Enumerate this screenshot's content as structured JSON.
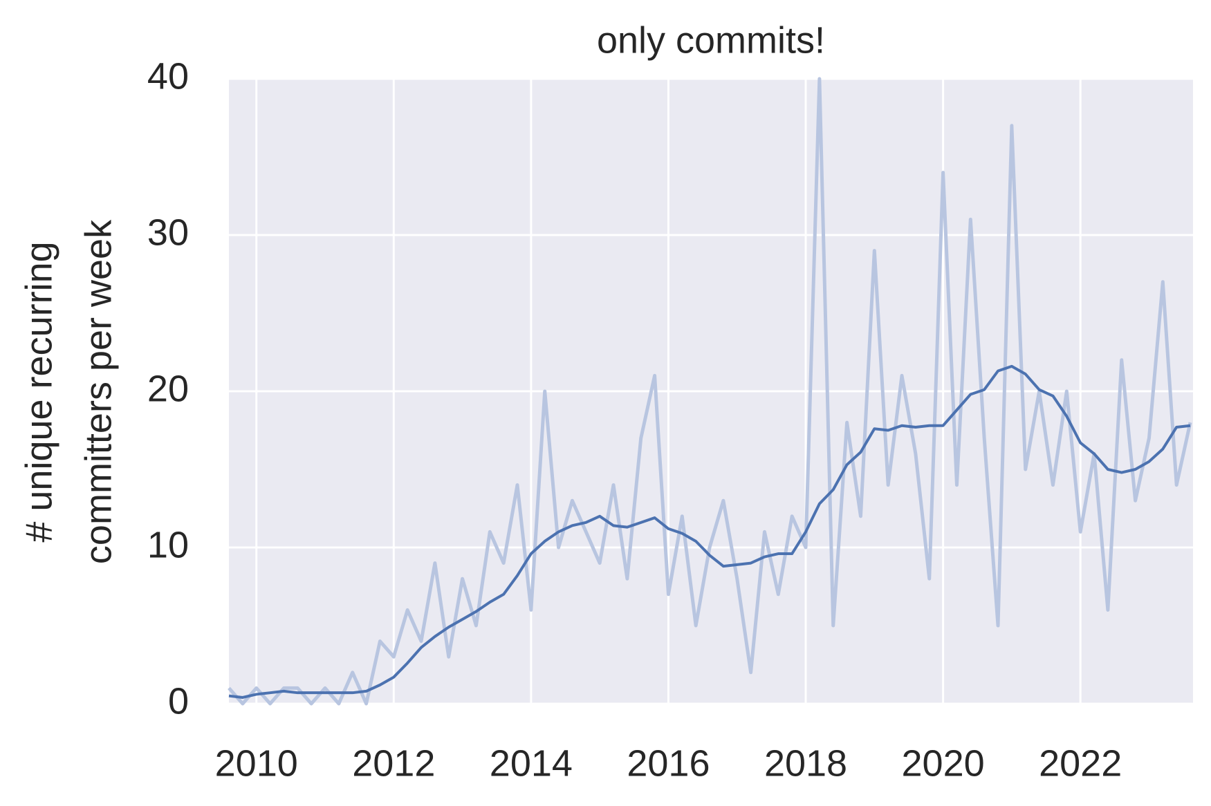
{
  "chart_data": {
    "type": "line",
    "title": "only commits!",
    "ylabel": [
      "# unique recurring",
      "committers per week"
    ],
    "x": [
      2009.6,
      2009.8,
      2010.0,
      2010.2,
      2010.4,
      2010.6,
      2010.8,
      2011.0,
      2011.2,
      2011.4,
      2011.6,
      2011.8,
      2012.0,
      2012.2,
      2012.4,
      2012.6,
      2012.8,
      2013.0,
      2013.2,
      2013.4,
      2013.6,
      2013.8,
      2014.0,
      2014.2,
      2014.4,
      2014.6,
      2014.8,
      2015.0,
      2015.2,
      2015.4,
      2015.6,
      2015.8,
      2016.0,
      2016.2,
      2016.4,
      2016.6,
      2016.8,
      2017.0,
      2017.2,
      2017.4,
      2017.6,
      2017.8,
      2018.0,
      2018.2,
      2018.4,
      2018.6,
      2018.8,
      2019.0,
      2019.2,
      2019.4,
      2019.6,
      2019.8,
      2020.0,
      2020.2,
      2020.4,
      2020.6,
      2020.8,
      2021.0,
      2021.2,
      2021.4,
      2021.6,
      2021.8,
      2022.0,
      2022.2,
      2022.4,
      2022.6,
      2022.8,
      2023.0,
      2023.2,
      2023.4,
      2023.6
    ],
    "series": [
      {
        "color": "#b8c5e0",
        "width": 5,
        "values": [
          1,
          0,
          1,
          0,
          1,
          1,
          0,
          1,
          0,
          2,
          0,
          4,
          3,
          6,
          4,
          9,
          3,
          8,
          5,
          11,
          9,
          14,
          6,
          20,
          10,
          13,
          11,
          9,
          14,
          8,
          17,
          21,
          7,
          12,
          5,
          10,
          13,
          8,
          2,
          11,
          7,
          12,
          10,
          40,
          5,
          18,
          12,
          29,
          14,
          21,
          16,
          8,
          34,
          14,
          31,
          17,
          5,
          37,
          15,
          20,
          14,
          20,
          11,
          16,
          6,
          22,
          13,
          17,
          27,
          14,
          18
        ]
      },
      {
        "color": "#4c72b0",
        "width": 4,
        "values": [
          0.5,
          0.4,
          0.6,
          0.7,
          0.8,
          0.7,
          0.7,
          0.7,
          0.7,
          0.7,
          0.8,
          1.2,
          1.7,
          2.6,
          3.6,
          4.3,
          4.9,
          5.4,
          5.9,
          6.5,
          7.0,
          8.2,
          9.6,
          10.4,
          11.0,
          11.4,
          11.6,
          12.0,
          11.4,
          11.3,
          11.6,
          11.9,
          11.2,
          10.9,
          10.4,
          9.5,
          8.8,
          8.9,
          9.0,
          9.4,
          9.6,
          9.6,
          11.0,
          12.8,
          13.7,
          15.3,
          16.1,
          17.6,
          17.5,
          17.8,
          17.7,
          17.8,
          17.8,
          18.8,
          19.8,
          20.1,
          21.3,
          21.6,
          21.1,
          20.1,
          19.7,
          18.4,
          16.7,
          16.0,
          15.0,
          14.8,
          15.0,
          15.5,
          16.3,
          17.7,
          17.8
        ]
      }
    ],
    "xlim": [
      2009.6,
      2023.64
    ],
    "xticks": [
      2010,
      2012,
      2014,
      2016,
      2018,
      2020,
      2022
    ],
    "ylim": [
      0,
      40
    ],
    "yticks": [
      0,
      10,
      20,
      30,
      40
    ],
    "grid": true,
    "background": "#eaeaf2"
  }
}
